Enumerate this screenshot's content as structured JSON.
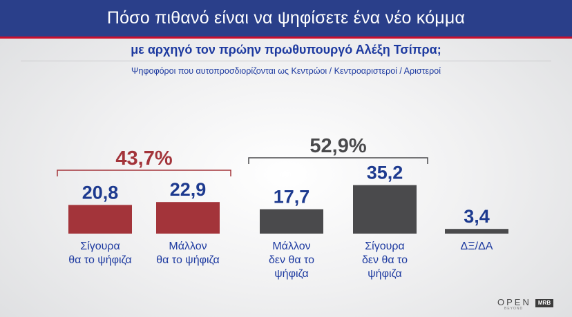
{
  "header": {
    "title": "Πόσο πιθανό είναι να ψηφίσετε ένα νέο κόμμα",
    "subtitle": "με αρχηγό τον πρώην πρωθυπουργό Αλέξη Τσίπρα;",
    "note": "Ψηφοφόροι που αυτοπροσδιορίζονται ως Κεντρώοι / Κεντροαριστεροί / Αριστεροί"
  },
  "chart_data": {
    "type": "bar",
    "categories": [
      "Σίγουρα θα το ψήφιζα",
      "Μάλλον θα το ψήφιζα",
      "Μάλλον δεν θα το ψήφιζα",
      "Σίγουρα δεν θα το ψήφιζα",
      "ΔΞ/ΔΑ"
    ],
    "category_lines": [
      [
        "Σίγουρα",
        "θα το ψήφιζα"
      ],
      [
        "Μάλλον",
        "θα το ψήφιζα"
      ],
      [
        "Μάλλον",
        "δεν θα το",
        "ψήφιζα"
      ],
      [
        "Σίγουρα",
        "δεν θα το",
        "ψήφιζα"
      ],
      [
        "ΔΞ/ΔΑ"
      ]
    ],
    "values": [
      20.8,
      22.9,
      17.7,
      35.2,
      3.4
    ],
    "value_labels": [
      "20,8",
      "22,9",
      "17,7",
      "35,2",
      "3,4"
    ],
    "bar_colors": [
      "#a3343a",
      "#a3343a",
      "#4a4a4c",
      "#4a4a4c",
      "#4a4a4c"
    ],
    "groups": [
      {
        "label": "43,7%",
        "color": "#a3343a",
        "members": [
          0,
          1
        ]
      },
      {
        "label": "52,9%",
        "color": "#4a4a4c",
        "members": [
          2,
          3
        ]
      }
    ],
    "value_label_color": "#1d3a8f",
    "category_label_color": "#1d3aa0"
  },
  "logos": {
    "open": "OPEN",
    "open_sub": "BEYOND",
    "mrb": "MRB"
  },
  "colors": {
    "header_bg": "#2a3f8a",
    "header_rule": "#c8102e"
  }
}
